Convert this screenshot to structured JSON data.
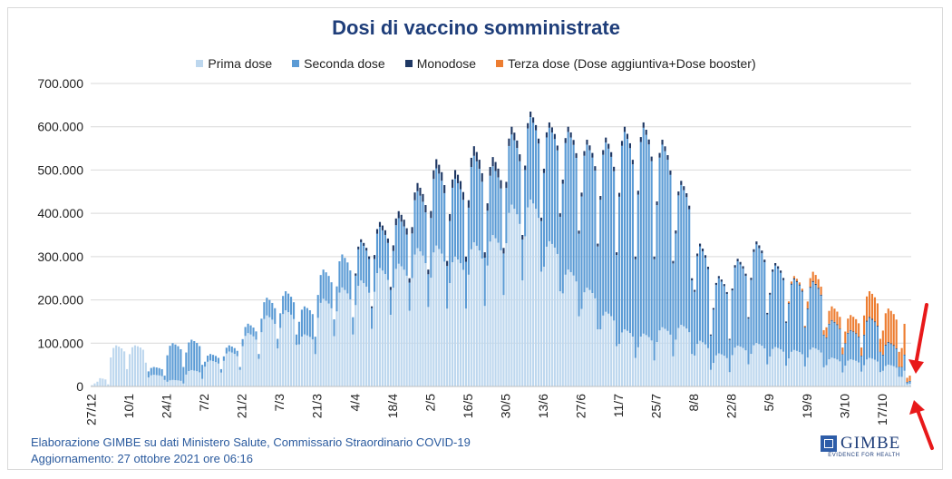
{
  "chart_data": {
    "type": "bar",
    "stacked": true,
    "title": "Dosi di vaccino somministrate",
    "legend_position": "top",
    "series": [
      {
        "name": "Prima dose",
        "color": "#bdd7ee"
      },
      {
        "name": "Seconda dose",
        "color": "#5b9bd5"
      },
      {
        "name": "Monodose",
        "color": "#1f3864"
      },
      {
        "name": "Terza dose (Dose aggiuntiva+Dose booster)",
        "color": "#ed7d31"
      }
    ],
    "ylim": [
      0,
      700000
    ],
    "y_ticks": [
      0,
      100000,
      200000,
      300000,
      400000,
      500000,
      600000,
      700000
    ],
    "y_tick_labels": [
      "0",
      "100.000",
      "200.000",
      "300.000",
      "400.000",
      "500.000",
      "600.000",
      "700.000"
    ],
    "x_tick_labels": [
      "27/12",
      "10/1",
      "24/1",
      "7/2",
      "21/2",
      "7/3",
      "21/3",
      "4/4",
      "18/4",
      "2/5",
      "16/5",
      "30/5",
      "13/6",
      "27/6",
      "11/7",
      "25/7",
      "8/8",
      "22/8",
      "5/9",
      "19/9",
      "3/10",
      "17/10"
    ],
    "days": 305,
    "days_per_tick": 14,
    "weekly_profile": {
      "weeks": [
        {
          "week_start": "27/12",
          "max_total": 20000,
          "min_total": 5000,
          "prima": 1.0,
          "seconda": 0.0,
          "monodose": 0.0,
          "terza": 0
        },
        {
          "week_start": "3/1",
          "max_total": 95000,
          "min_total": 40000,
          "prima": 1.0,
          "seconda": 0.0,
          "monodose": 0.0,
          "terza": 0
        },
        {
          "week_start": "10/1",
          "max_total": 95000,
          "min_total": 55000,
          "prima": 1.0,
          "seconda": 0.0,
          "monodose": 0.0,
          "terza": 0
        },
        {
          "week_start": "17/1",
          "max_total": 45000,
          "min_total": 25000,
          "prima": 0.6,
          "seconda": 0.4,
          "monodose": 0.0,
          "terza": 0
        },
        {
          "week_start": "24/1",
          "max_total": 100000,
          "min_total": 45000,
          "prima": 0.15,
          "seconda": 0.85,
          "monodose": 0.0,
          "terza": 0
        },
        {
          "week_start": "31/1",
          "max_total": 108000,
          "min_total": 50000,
          "prima": 0.35,
          "seconda": 0.65,
          "monodose": 0.0,
          "terza": 0
        },
        {
          "week_start": "7/2",
          "max_total": 75000,
          "min_total": 40000,
          "prima": 0.8,
          "seconda": 0.2,
          "monodose": 0.0,
          "terza": 0
        },
        {
          "week_start": "14/2",
          "max_total": 95000,
          "min_total": 45000,
          "prima": 0.85,
          "seconda": 0.15,
          "monodose": 0.0,
          "terza": 0
        },
        {
          "week_start": "21/2",
          "max_total": 145000,
          "min_total": 75000,
          "prima": 0.85,
          "seconda": 0.15,
          "monodose": 0.0,
          "terza": 0
        },
        {
          "week_start": "28/2",
          "max_total": 205000,
          "min_total": 110000,
          "prima": 0.8,
          "seconda": 0.2,
          "monodose": 0.0,
          "terza": 0
        },
        {
          "week_start": "7/3",
          "max_total": 220000,
          "min_total": 120000,
          "prima": 0.8,
          "seconda": 0.2,
          "monodose": 0.0,
          "terza": 0
        },
        {
          "week_start": "14/3",
          "max_total": 185000,
          "min_total": 115000,
          "prima": 0.65,
          "seconda": 0.35,
          "monodose": 0.0,
          "terza": 0
        },
        {
          "week_start": "21/3",
          "max_total": 270000,
          "min_total": 155000,
          "prima": 0.75,
          "seconda": 0.25,
          "monodose": 0.0,
          "terza": 0
        },
        {
          "week_start": "28/3",
          "max_total": 305000,
          "min_total": 160000,
          "prima": 0.75,
          "seconda": 0.25,
          "monodose": 0.0,
          "terza": 0
        },
        {
          "week_start": "4/4",
          "max_total": 340000,
          "min_total": 185000,
          "prima": 0.72,
          "seconda": 0.26,
          "monodose": 0.02,
          "terza": 0
        },
        {
          "week_start": "11/4",
          "max_total": 380000,
          "min_total": 230000,
          "prima": 0.72,
          "seconda": 0.25,
          "monodose": 0.03,
          "terza": 0
        },
        {
          "week_start": "18/4",
          "max_total": 405000,
          "min_total": 250000,
          "prima": 0.7,
          "seconda": 0.26,
          "monodose": 0.04,
          "terza": 0
        },
        {
          "week_start": "25/4",
          "max_total": 470000,
          "min_total": 270000,
          "prima": 0.68,
          "seconda": 0.28,
          "monodose": 0.04,
          "terza": 0
        },
        {
          "week_start": "2/5",
          "max_total": 525000,
          "min_total": 290000,
          "prima": 0.62,
          "seconda": 0.34,
          "monodose": 0.04,
          "terza": 0
        },
        {
          "week_start": "9/5",
          "max_total": 500000,
          "min_total": 300000,
          "prima": 0.6,
          "seconda": 0.36,
          "monodose": 0.04,
          "terza": 0
        },
        {
          "week_start": "16/5",
          "max_total": 555000,
          "min_total": 310000,
          "prima": 0.6,
          "seconda": 0.36,
          "monodose": 0.04,
          "terza": 0
        },
        {
          "week_start": "23/5",
          "max_total": 530000,
          "min_total": 320000,
          "prima": 0.66,
          "seconda": 0.3,
          "monodose": 0.04,
          "terza": 0
        },
        {
          "week_start": "30/5",
          "max_total": 600000,
          "min_total": 350000,
          "prima": 0.7,
          "seconda": 0.27,
          "monodose": 0.03,
          "terza": 0
        },
        {
          "week_start": "6/6",
          "max_total": 635000,
          "min_total": 390000,
          "prima": 0.68,
          "seconda": 0.3,
          "monodose": 0.02,
          "terza": 0
        },
        {
          "week_start": "13/6",
          "max_total": 610000,
          "min_total": 400000,
          "prima": 0.55,
          "seconda": 0.43,
          "monodose": 0.02,
          "terza": 0
        },
        {
          "week_start": "20/6",
          "max_total": 600000,
          "min_total": 360000,
          "prima": 0.45,
          "seconda": 0.53,
          "monodose": 0.02,
          "terza": 0
        },
        {
          "week_start": "27/6",
          "max_total": 570000,
          "min_total": 330000,
          "prima": 0.4,
          "seconda": 0.58,
          "monodose": 0.02,
          "terza": 0
        },
        {
          "week_start": "4/7",
          "max_total": 575000,
          "min_total": 310000,
          "prima": 0.3,
          "seconda": 0.68,
          "monodose": 0.02,
          "terza": 0
        },
        {
          "week_start": "11/7",
          "max_total": 600000,
          "min_total": 300000,
          "prima": 0.22,
          "seconda": 0.76,
          "monodose": 0.02,
          "terza": 0
        },
        {
          "week_start": "18/7",
          "max_total": 610000,
          "min_total": 300000,
          "prima": 0.2,
          "seconda": 0.78,
          "monodose": 0.02,
          "terza": 0
        },
        {
          "week_start": "25/7",
          "max_total": 570000,
          "min_total": 290000,
          "prima": 0.24,
          "seconda": 0.74,
          "monodose": 0.02,
          "terza": 0
        },
        {
          "week_start": "1/8",
          "max_total": 475000,
          "min_total": 250000,
          "prima": 0.3,
          "seconda": 0.68,
          "monodose": 0.02,
          "terza": 0
        },
        {
          "week_start": "8/8",
          "max_total": 330000,
          "min_total": 120000,
          "prima": 0.32,
          "seconda": 0.66,
          "monodose": 0.02,
          "terza": 0
        },
        {
          "week_start": "15/8",
          "max_total": 255000,
          "min_total": 110000,
          "prima": 0.3,
          "seconda": 0.68,
          "monodose": 0.02,
          "terza": 0
        },
        {
          "week_start": "22/8",
          "max_total": 295000,
          "min_total": 160000,
          "prima": 0.32,
          "seconda": 0.66,
          "monodose": 0.02,
          "terza": 0
        },
        {
          "week_start": "29/8",
          "max_total": 335000,
          "min_total": 170000,
          "prima": 0.3,
          "seconda": 0.68,
          "monodose": 0.02,
          "terza": 0
        },
        {
          "week_start": "5/9",
          "max_total": 285000,
          "min_total": 150000,
          "prima": 0.32,
          "seconda": 0.66,
          "monodose": 0.02,
          "terza": 0
        },
        {
          "week_start": "12/9",
          "max_total": 255000,
          "min_total": 140000,
          "prima": 0.33,
          "seconda": 0.64,
          "monodose": 0.01,
          "terza": 0.02
        },
        {
          "week_start": "19/9",
          "max_total": 265000,
          "min_total": 130000,
          "prima": 0.34,
          "seconda": 0.57,
          "monodose": 0.01,
          "terza": 0.08
        },
        {
          "week_start": "26/9",
          "max_total": 185000,
          "min_total": 90000,
          "prima": 0.36,
          "seconda": 0.46,
          "monodose": 0.01,
          "terza": 0.17
        },
        {
          "week_start": "3/10",
          "max_total": 165000,
          "min_total": 90000,
          "prima": 0.38,
          "seconda": 0.4,
          "monodose": 0.01,
          "terza": 0.21
        },
        {
          "week_start": "10/10",
          "max_total": 220000,
          "min_total": 110000,
          "prima": 0.3,
          "seconda": 0.42,
          "monodose": 0.01,
          "terza": 0.27
        },
        {
          "week_start": "17/10",
          "max_total": 180000,
          "min_total": 80000,
          "prima": 0.28,
          "seconda": 0.28,
          "monodose": 0.01,
          "terza": 0.43
        },
        {
          "week_start": "24/10",
          "max_total": 160000,
          "min_total": 20000,
          "prima": 0.25,
          "seconda": 0.25,
          "monodose": 0.01,
          "terza": 0.49
        }
      ]
    }
  },
  "footer": {
    "line1": "Elaborazione GIMBE su dati Ministero Salute, Commissario Straordinario COVID-19",
    "line2": "Aggiornamento: 27 ottobre 2021 ore 06:16"
  },
  "logo": {
    "name": "GIMBE",
    "tagline": "EVIDENCE FOR HEALTH"
  },
  "annotation_color": "#e8191a"
}
